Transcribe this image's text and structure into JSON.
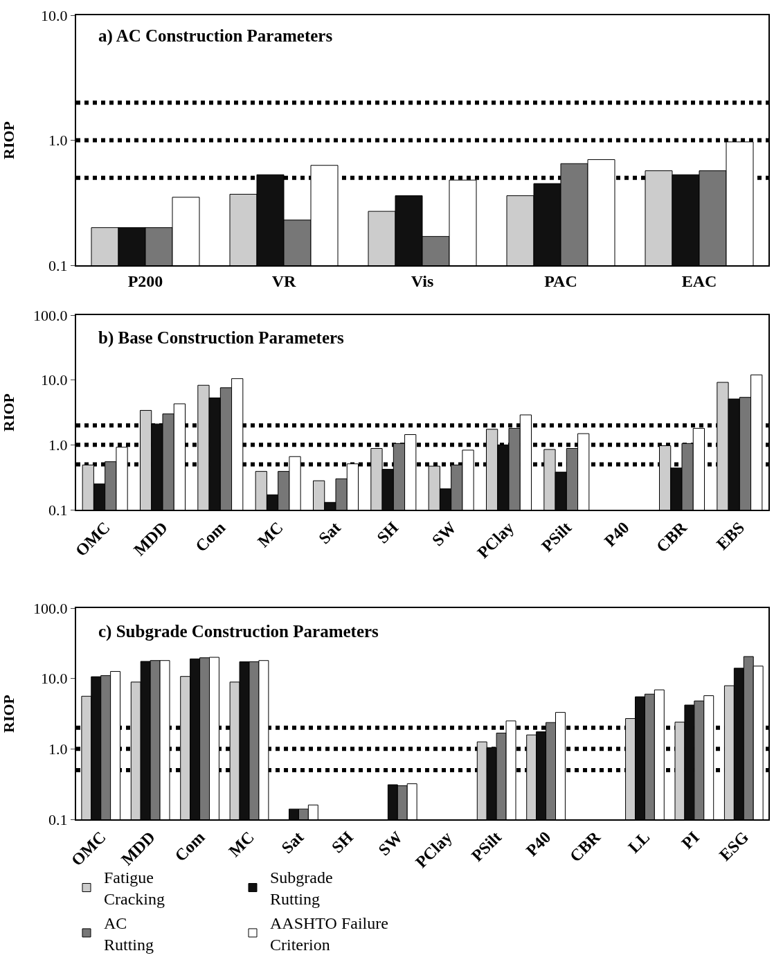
{
  "chart_data": [
    {
      "type": "bar",
      "title": "a) AC Construction Parameters",
      "ylabel": "RIOP",
      "categories": [
        "P200",
        "VR",
        "Vis",
        "PAC",
        "EAC"
      ],
      "series": [
        {
          "name": "Fatigue Cracking",
          "color": "#cccccc",
          "values": [
            0.2,
            0.37,
            0.27,
            0.36,
            0.57
          ]
        },
        {
          "name": "Subgrade Rutting",
          "color": "#111111",
          "values": [
            0.2,
            0.53,
            0.36,
            0.45,
            0.53
          ]
        },
        {
          "name": "AC Rutting",
          "color": "#777777",
          "values": [
            0.2,
            0.23,
            0.17,
            0.65,
            0.57
          ]
        },
        {
          "name": "AASHTO Failure Criterion",
          "color": "#ffffff",
          "values": [
            0.35,
            0.63,
            0.48,
            0.7,
            0.97
          ]
        }
      ],
      "log": true,
      "ylim": [
        0.1,
        10
      ],
      "yticks": [
        {
          "value": 0.1,
          "label": "0.1"
        },
        {
          "value": 1,
          "label": "1.0"
        },
        {
          "value": 10,
          "label": "10.0"
        }
      ],
      "ref_lines": [
        {
          "axis": "y",
          "value": 0.5,
          "line_style": "dotted",
          "color": "#000000"
        },
        {
          "axis": "y",
          "value": 1,
          "line_style": "dotted",
          "color": "#000000"
        },
        {
          "axis": "y",
          "value": 2,
          "line_style": "dotted",
          "color": "#000000"
        }
      ],
      "grid": false,
      "legend": "bottom"
    },
    {
      "type": "bar",
      "title": "b) Base Construction Parameters",
      "ylabel": "RIOP",
      "categories": [
        "OMC",
        "MDD",
        "Com",
        "MC",
        "Sat",
        "SH",
        "SW",
        "PClay",
        "PSilt",
        "P40",
        "CBR",
        "EBS"
      ],
      "series": [
        {
          "color": "#cccccc",
          "values": [
            0.49,
            3.4,
            8.3,
            0.39,
            0.28,
            0.88,
            0.47,
            1.74,
            0.85,
            null,
            0.97,
            9.2
          ]
        },
        {
          "color": "#111111",
          "values": [
            0.25,
            2.1,
            5.3,
            0.17,
            0.13,
            0.42,
            0.21,
            1.0,
            0.38,
            null,
            0.44,
            5.1
          ]
        },
        {
          "color": "#777777",
          "values": [
            0.55,
            3.0,
            7.6,
            0.39,
            0.3,
            1.05,
            0.49,
            1.8,
            0.88,
            null,
            1.05,
            5.4
          ]
        },
        {
          "color": "#ffffff",
          "values": [
            0.92,
            4.3,
            10.5,
            0.66,
            0.51,
            1.44,
            0.83,
            2.9,
            1.49,
            null,
            1.8,
            12
          ]
        }
      ],
      "log": true,
      "ylim": [
        0.1,
        100
      ],
      "yticks": [
        {
          "value": 0.1,
          "label": "0.1"
        },
        {
          "value": 1,
          "label": "1.0"
        },
        {
          "value": 10,
          "label": "10.0"
        },
        {
          "value": 100,
          "label": "100.0"
        }
      ],
      "ref_lines": [
        {
          "axis": "y",
          "value": 0.5,
          "line_style": "dotted",
          "color": "#000000"
        },
        {
          "axis": "y",
          "value": 1,
          "line_style": "dotted",
          "color": "#000000"
        },
        {
          "axis": "y",
          "value": 2,
          "line_style": "dotted",
          "color": "#000000"
        }
      ],
      "grid": false
    },
    {
      "type": "bar",
      "title": "c) Subgrade Construction Parameters",
      "ylabel": "RIOP",
      "categories": [
        "OMC",
        "MDD",
        "Com",
        "MC",
        "Sat",
        "SH",
        "SW",
        "PClay",
        "PSilt",
        "P40",
        "CBR",
        "LL",
        "PI",
        "ESG"
      ],
      "series": [
        {
          "color": "#cccccc",
          "values": [
            5.6,
            8.9,
            10.7,
            8.9,
            null,
            null,
            null,
            null,
            1.26,
            1.58,
            null,
            2.7,
            2.4,
            7.9
          ]
        },
        {
          "color": "#111111",
          "values": [
            10.6,
            17.5,
            19,
            17.3,
            0.14,
            null,
            0.31,
            null,
            1.04,
            1.75,
            null,
            5.5,
            4.2,
            14
          ]
        },
        {
          "color": "#777777",
          "values": [
            11,
            18,
            19.7,
            17.3,
            0.14,
            null,
            0.3,
            null,
            1.68,
            2.37,
            null,
            6.0,
            4.8,
            20.5
          ]
        },
        {
          "color": "#ffffff",
          "values": [
            12.6,
            18,
            20,
            18,
            0.16,
            null,
            0.32,
            null,
            2.5,
            3.3,
            null,
            6.9,
            5.7,
            15
          ]
        }
      ],
      "log": true,
      "ylim": [
        0.1,
        100
      ],
      "yticks": [
        {
          "value": 0.1,
          "label": "0.1"
        },
        {
          "value": 1,
          "label": "1.0"
        },
        {
          "value": 10,
          "label": "10.0"
        },
        {
          "value": 100,
          "label": "100.0"
        }
      ],
      "ref_lines": [
        {
          "axis": "y",
          "value": 0.5,
          "line_style": "dotted",
          "color": "#000000"
        },
        {
          "axis": "y",
          "value": 1,
          "line_style": "dotted",
          "color": "#000000"
        },
        {
          "axis": "y",
          "value": 2,
          "line_style": "dotted",
          "color": "#000000"
        }
      ],
      "grid": false
    }
  ]
}
